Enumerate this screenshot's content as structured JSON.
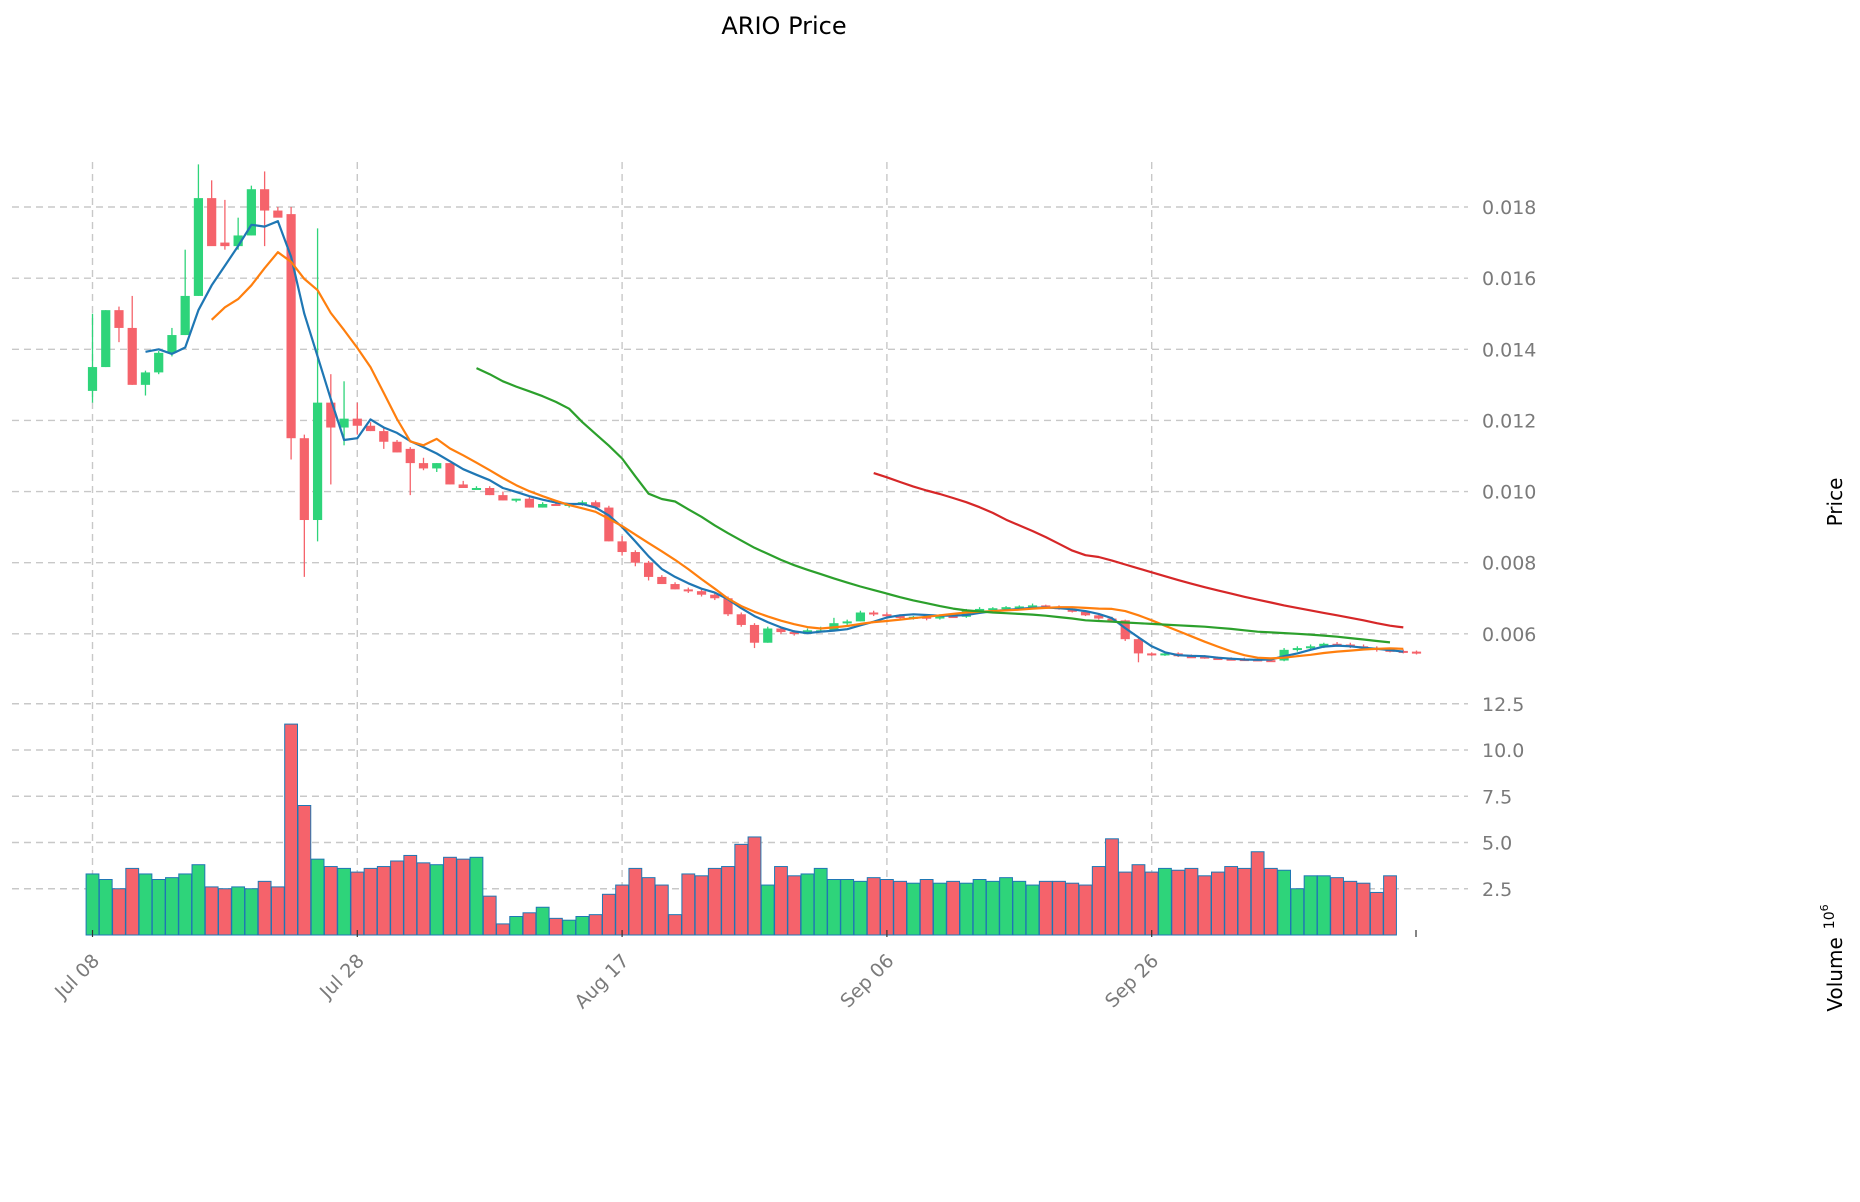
{
  "title": "ARIO Price",
  "chart_data": {
    "type": "candlestick",
    "title": "ARIO Price",
    "price_axis": {
      "label": "Price",
      "ticks": [
        "0.006",
        "0.008",
        "0.010",
        "0.012",
        "0.014",
        "0.016",
        "0.018"
      ],
      "range": [
        0.0045,
        0.0197
      ]
    },
    "volume_axis": {
      "label": "Volume",
      "exponent": "6",
      "ticks": [
        "2.5",
        "5.0",
        "7.5",
        "10.0",
        "12.5"
      ],
      "range": [
        0,
        13
      ]
    },
    "x_ticks": [
      {
        "label": "Jul 08",
        "day": 0
      },
      {
        "label": "Jul 28",
        "day": 20
      },
      {
        "label": "Aug 17",
        "day": 40
      },
      {
        "label": "Sep 06",
        "day": 60
      },
      {
        "label": "Sep 26",
        "day": 80
      }
    ],
    "x_range": [
      -0.5,
      100
    ],
    "grid": true,
    "colors": {
      "up": "#2ed47a",
      "down": "#f5636b",
      "volume_edge": "#1f77b4"
    },
    "candles": [
      [
        0.01283,
        0.015,
        0.0125,
        0.0135
      ],
      [
        0.0135,
        0.0151,
        0.0135,
        0.0151
      ],
      [
        0.0151,
        0.0152,
        0.0142,
        0.0146
      ],
      [
        0.0146,
        0.0155,
        0.013,
        0.013
      ],
      [
        0.013,
        0.0134,
        0.0127,
        0.01335
      ],
      [
        0.01335,
        0.01395,
        0.0133,
        0.0139
      ],
      [
        0.0139,
        0.0146,
        0.0138,
        0.0144
      ],
      [
        0.0144,
        0.0168,
        0.0144,
        0.0155
      ],
      [
        0.0155,
        0.0192,
        0.0155,
        0.01825
      ],
      [
        0.01825,
        0.01875,
        0.017,
        0.0169
      ],
      [
        0.017,
        0.0182,
        0.0168,
        0.0169
      ],
      [
        0.0169,
        0.0177,
        0.0168,
        0.0172
      ],
      [
        0.0172,
        0.0186,
        0.0172,
        0.0185
      ],
      [
        0.0185,
        0.019,
        0.0169,
        0.0179
      ],
      [
        0.0179,
        0.018,
        0.0178,
        0.0177
      ],
      [
        0.0178,
        0.018,
        0.0109,
        0.0115
      ],
      [
        0.0115,
        0.0116,
        0.0076,
        0.0092
      ],
      [
        0.0092,
        0.0174,
        0.0086,
        0.0125
      ],
      [
        0.0125,
        0.0133,
        0.0102,
        0.0118
      ],
      [
        0.0118,
        0.0131,
        0.0113,
        0.01205
      ],
      [
        0.01205,
        0.0125,
        0.0116,
        0.01185
      ],
      [
        0.01185,
        0.01195,
        0.0117,
        0.0117
      ],
      [
        0.0117,
        0.0118,
        0.0112,
        0.0114
      ],
      [
        0.0114,
        0.01145,
        0.0111,
        0.0111
      ],
      [
        0.0112,
        0.01125,
        0.0099,
        0.0108
      ],
      [
        0.0108,
        0.01095,
        0.0106,
        0.01065
      ],
      [
        0.01065,
        0.0108,
        0.01055,
        0.0108
      ],
      [
        0.0108,
        0.0108,
        0.0102,
        0.0102
      ],
      [
        0.0102,
        0.0103,
        0.0101,
        0.0101
      ],
      [
        0.0101,
        0.01015,
        0.01005,
        0.0101
      ],
      [
        0.0101,
        0.01015,
        0.0099,
        0.0099
      ],
      [
        0.0099,
        0.01,
        0.00975,
        0.00975
      ],
      [
        0.00975,
        0.0098,
        0.0097,
        0.0098
      ],
      [
        0.0098,
        0.00985,
        0.00955,
        0.00955
      ],
      [
        0.00955,
        0.0097,
        0.00955,
        0.00965
      ],
      [
        0.00965,
        0.0097,
        0.0096,
        0.0096
      ],
      [
        0.0096,
        0.00965,
        0.00955,
        0.00965
      ],
      [
        0.00965,
        0.00975,
        0.0096,
        0.0097
      ],
      [
        0.0097,
        0.00975,
        0.0095,
        0.00955
      ],
      [
        0.00955,
        0.0096,
        0.0086,
        0.0086
      ],
      [
        0.0086,
        0.00875,
        0.0082,
        0.0083
      ],
      [
        0.0083,
        0.00835,
        0.0079,
        0.008
      ],
      [
        0.008,
        0.00805,
        0.0075,
        0.0076
      ],
      [
        0.0076,
        0.00765,
        0.0074,
        0.0074
      ],
      [
        0.0074,
        0.00745,
        0.00725,
        0.00725
      ],
      [
        0.00725,
        0.0073,
        0.00715,
        0.0072
      ],
      [
        0.0072,
        0.00725,
        0.00705,
        0.0071
      ],
      [
        0.0071,
        0.00715,
        0.00695,
        0.007
      ],
      [
        0.007,
        0.00705,
        0.0065,
        0.00655
      ],
      [
        0.00655,
        0.0066,
        0.0062,
        0.00625
      ],
      [
        0.00625,
        0.0063,
        0.0056,
        0.00575
      ],
      [
        0.00575,
        0.0062,
        0.00575,
        0.00615
      ],
      [
        0.00615,
        0.0062,
        0.006,
        0.00605
      ],
      [
        0.00605,
        0.0061,
        0.00595,
        0.006
      ],
      [
        0.006,
        0.00615,
        0.006,
        0.0061
      ],
      [
        0.0061,
        0.0062,
        0.00605,
        0.0061
      ],
      [
        0.0061,
        0.00645,
        0.0061,
        0.0063
      ],
      [
        0.0063,
        0.0064,
        0.00625,
        0.00635
      ],
      [
        0.00635,
        0.00665,
        0.00635,
        0.0066
      ],
      [
        0.0066,
        0.00665,
        0.0065,
        0.00655
      ],
      [
        0.00655,
        0.0066,
        0.00645,
        0.0065
      ],
      [
        0.0065,
        0.00655,
        0.0064,
        0.00645
      ],
      [
        0.00645,
        0.0065,
        0.0064,
        0.00648
      ],
      [
        0.00648,
        0.00652,
        0.00638,
        0.00643
      ],
      [
        0.00643,
        0.00655,
        0.0064,
        0.0065
      ],
      [
        0.0065,
        0.00655,
        0.00645,
        0.00648
      ],
      [
        0.00648,
        0.0067,
        0.00645,
        0.00665
      ],
      [
        0.00665,
        0.00675,
        0.0066,
        0.0067
      ],
      [
        0.0067,
        0.00675,
        0.00665,
        0.00672
      ],
      [
        0.00672,
        0.00678,
        0.00668,
        0.00675
      ],
      [
        0.00675,
        0.0068,
        0.0067,
        0.00677
      ],
      [
        0.00677,
        0.00685,
        0.00672,
        0.0068
      ],
      [
        0.0068,
        0.00682,
        0.00672,
        0.00675
      ],
      [
        0.00675,
        0.0068,
        0.00668,
        0.0067
      ],
      [
        0.0067,
        0.00672,
        0.0066,
        0.00662
      ],
      [
        0.00662,
        0.00665,
        0.0065,
        0.00652
      ],
      [
        0.00652,
        0.00655,
        0.0064,
        0.00643
      ],
      [
        0.00643,
        0.00648,
        0.00635,
        0.00638
      ],
      [
        0.00638,
        0.0064,
        0.0058,
        0.00585
      ],
      [
        0.00585,
        0.0059,
        0.0052,
        0.00545
      ],
      [
        0.00545,
        0.00548,
        0.00538,
        0.0054
      ],
      [
        0.0054,
        0.00548,
        0.00538,
        0.00545
      ],
      [
        0.00545,
        0.00548,
        0.00535,
        0.00537
      ],
      [
        0.00537,
        0.00542,
        0.00533,
        0.00536
      ],
      [
        0.00536,
        0.0054,
        0.0053,
        0.00532
      ],
      [
        0.00532,
        0.00536,
        0.00528,
        0.0053
      ],
      [
        0.0053,
        0.00534,
        0.00527,
        0.00529
      ],
      [
        0.00529,
        0.00533,
        0.00526,
        0.00528
      ],
      [
        0.00528,
        0.00531,
        0.00524,
        0.00526
      ],
      [
        0.00526,
        0.0053,
        0.00523,
        0.00525
      ],
      [
        0.00525,
        0.0056,
        0.00523,
        0.00555
      ],
      [
        0.00555,
        0.00565,
        0.0055,
        0.0056
      ],
      [
        0.0056,
        0.0057,
        0.00555,
        0.00565
      ],
      [
        0.00565,
        0.00575,
        0.0056,
        0.00572
      ],
      [
        0.00572,
        0.00577,
        0.00565,
        0.0057
      ],
      [
        0.0057,
        0.00575,
        0.0056,
        0.00565
      ],
      [
        0.00565,
        0.0057,
        0.00555,
        0.0056
      ],
      [
        0.0056,
        0.00565,
        0.0055,
        0.00555
      ],
      [
        0.00555,
        0.0056,
        0.00548,
        0.00552
      ],
      [
        0.00552,
        0.00556,
        0.00545,
        0.0055
      ],
      [
        0.0055,
        0.00553,
        0.00542,
        0.00545
      ]
    ],
    "volumes": [
      3.3,
      3.0,
      2.5,
      3.6,
      3.3,
      3.0,
      3.1,
      3.3,
      3.8,
      2.6,
      2.5,
      2.6,
      2.5,
      2.9,
      2.6,
      11.4,
      7.0,
      4.1,
      3.7,
      3.6,
      3.4,
      3.6,
      3.7,
      4.0,
      4.3,
      3.9,
      3.8,
      4.2,
      4.1,
      4.2,
      2.1,
      0.6,
      1.0,
      1.2,
      1.5,
      0.9,
      0.8,
      1.0,
      1.1,
      2.2,
      2.7,
      3.6,
      3.1,
      2.7,
      1.1,
      3.3,
      3.2,
      3.6,
      3.7,
      4.9,
      5.3,
      2.7,
      3.7,
      3.2,
      3.3,
      3.6,
      3.0,
      3.0,
      2.9,
      3.1,
      3.0,
      2.9,
      2.8,
      3.0,
      2.8,
      2.9,
      2.8,
      3.0,
      2.9,
      3.1,
      2.9,
      2.7,
      2.9,
      2.9,
      2.8,
      2.7,
      3.7,
      5.2,
      3.4,
      3.8,
      3.4,
      3.6,
      3.5,
      3.6,
      3.2,
      3.4,
      3.7,
      3.6,
      4.5,
      3.6,
      3.5,
      2.5,
      3.2,
      3.2,
      3.1,
      2.9,
      2.8,
      2.3,
      3.2
    ],
    "moving_averages": [
      {
        "color": "#1f77b4",
        "start": 4,
        "values": [
          0.01393,
          0.014,
          0.01387,
          0.01405,
          0.0151,
          0.0158,
          0.01635,
          0.0169,
          0.0175,
          0.01745,
          0.0176,
          0.0166,
          0.015,
          0.0138,
          0.0126,
          0.01145,
          0.0115,
          0.01203,
          0.0118,
          0.01165,
          0.01142,
          0.01125,
          0.01107,
          0.01085,
          0.01063,
          0.01047,
          0.01032,
          0.0101,
          0.00999,
          0.00987,
          0.00977,
          0.00969,
          0.00965,
          0.00965,
          0.00955,
          0.00933,
          0.009,
          0.0086,
          0.00818,
          0.00782,
          0.0076,
          0.00742,
          0.00727,
          0.00716,
          0.00697,
          0.00672,
          0.0065,
          0.00633,
          0.00618,
          0.00607,
          0.00602,
          0.00606,
          0.00609,
          0.00613,
          0.00624,
          0.00634,
          0.00646,
          0.00652,
          0.00655,
          0.00653,
          0.00651,
          0.00651,
          0.00653,
          0.00659,
          0.00664,
          0.00667,
          0.0067,
          0.00673,
          0.00674,
          0.00672,
          0.00669,
          0.00664,
          0.00656,
          0.00644,
          0.00616,
          0.0059,
          0.00565,
          0.00548,
          0.0054,
          0.00538,
          0.00537,
          0.00533,
          0.0053,
          0.00528,
          0.00527,
          0.00528,
          0.00537,
          0.00545,
          0.00555,
          0.00564,
          0.00567,
          0.00565,
          0.00561,
          0.00558,
          0.00554,
          0.0055
        ]
      },
      {
        "color": "#ff7f0e",
        "start": 9,
        "values": [
          0.01483,
          0.01518,
          0.01541,
          0.0158,
          0.01628,
          0.01673,
          0.01646,
          0.01598,
          0.01566,
          0.01502,
          0.01454,
          0.01404,
          0.0135,
          0.01277,
          0.01204,
          0.01141,
          0.0113,
          0.01148,
          0.01121,
          0.01102,
          0.01081,
          0.0106,
          0.01038,
          0.01018,
          0.01001,
          0.00987,
          0.00974,
          0.00962,
          0.00953,
          0.00943,
          0.00923,
          0.00903,
          0.00879,
          0.00855,
          0.00832,
          0.00808,
          0.00782,
          0.00754,
          0.00727,
          0.00699,
          0.00678,
          0.00662,
          0.00649,
          0.00637,
          0.00627,
          0.00619,
          0.00615,
          0.00618,
          0.00622,
          0.00628,
          0.00633,
          0.00636,
          0.0064,
          0.00644,
          0.00648,
          0.00652,
          0.00656,
          0.0066,
          0.00662,
          0.00664,
          0.00666,
          0.00668,
          0.00671,
          0.00673,
          0.00675,
          0.00675,
          0.00673,
          0.00671,
          0.0067,
          0.00664,
          0.00652,
          0.00638,
          0.00623,
          0.00608,
          0.00593,
          0.00578,
          0.00564,
          0.00551,
          0.0054,
          0.00533,
          0.00531,
          0.00533,
          0.00537,
          0.00541,
          0.00546,
          0.0055,
          0.00553,
          0.00556,
          0.00558,
          0.00559,
          0.00558
        ]
      },
      {
        "color": "#2ca02c",
        "start": 29,
        "values": [
          0.01347,
          0.0133,
          0.0131,
          0.01295,
          0.01282,
          0.01268,
          0.01252,
          0.01233,
          0.01195,
          0.01162,
          0.01129,
          0.01093,
          0.01043,
          0.00994,
          0.00979,
          0.00972,
          0.0095,
          0.00929,
          0.00905,
          0.00883,
          0.00862,
          0.00842,
          0.00825,
          0.00808,
          0.00793,
          0.0078,
          0.00768,
          0.00756,
          0.00744,
          0.00733,
          0.00723,
          0.00713,
          0.00703,
          0.00694,
          0.00686,
          0.00678,
          0.00671,
          0.00666,
          0.00663,
          0.0066,
          0.00658,
          0.00656,
          0.00654,
          0.00651,
          0.00647,
          0.00643,
          0.00638,
          0.00636,
          0.00634,
          0.00632,
          0.0063,
          0.00628,
          0.00626,
          0.00624,
          0.00622,
          0.0062,
          0.00617,
          0.00614,
          0.0061,
          0.00606,
          0.00604,
          0.00602,
          0.006,
          0.00598,
          0.00595,
          0.00592,
          0.00588,
          0.00584,
          0.0058,
          0.00576
        ]
      },
      {
        "color": "#d62728",
        "start": 59,
        "values": [
          0.01052,
          0.0104,
          0.01027,
          0.01014,
          0.01003,
          0.00993,
          0.00982,
          0.0097,
          0.00956,
          0.0094,
          0.00921,
          0.00905,
          0.00889,
          0.00872,
          0.00853,
          0.00834,
          0.00821,
          0.00816,
          0.00806,
          0.00795,
          0.00784,
          0.00773,
          0.00762,
          0.00751,
          0.00741,
          0.00731,
          0.00722,
          0.00713,
          0.00704,
          0.00696,
          0.00688,
          0.0068,
          0.00673,
          0.00666,
          0.00659,
          0.00652,
          0.00645,
          0.00638,
          0.0063,
          0.00623,
          0.00618
        ]
      }
    ]
  }
}
